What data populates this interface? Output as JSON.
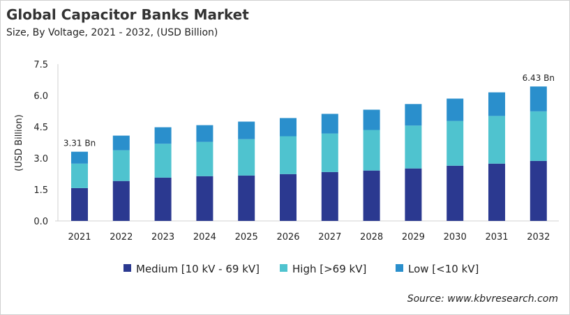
{
  "chart_data": {
    "type": "bar",
    "stacked": true,
    "title": "Global Capacitor Banks Market",
    "subtitle": "Size, By Voltage, 2021 - 2032, (USD Billion)",
    "xlabel": "",
    "ylabel": "(USD Billion)",
    "ylim": [
      0,
      7.5
    ],
    "yticks": [
      "0.0",
      "1.5",
      "3.0",
      "4.5",
      "6.0",
      "7.5"
    ],
    "grid": false,
    "legend_position": "bottom",
    "categories": [
      "2021",
      "2022",
      "2023",
      "2024",
      "2025",
      "2026",
      "2027",
      "2028",
      "2029",
      "2030",
      "2031",
      "2032"
    ],
    "series": [
      {
        "name": "Medium [10 kV - 69 kV]",
        "color": "#2B3990",
        "values": [
          1.57,
          1.91,
          2.07,
          2.14,
          2.17,
          2.24,
          2.34,
          2.41,
          2.51,
          2.64,
          2.74,
          2.87
        ]
      },
      {
        "name": "High [>69 kV]",
        "color": "#4FC3CF",
        "values": [
          1.17,
          1.47,
          1.62,
          1.64,
          1.74,
          1.81,
          1.84,
          1.94,
          2.05,
          2.14,
          2.28,
          2.37
        ]
      },
      {
        "name": "Low [<10 kV]",
        "color": "#2A8FCC",
        "values": [
          0.57,
          0.7,
          0.79,
          0.8,
          0.84,
          0.87,
          0.94,
          0.97,
          1.03,
          1.07,
          1.13,
          1.19
        ]
      }
    ],
    "annotations": [
      {
        "category": "2021",
        "text": "3.31 Bn"
      },
      {
        "category": "2032",
        "text": "6.43 Bn"
      }
    ]
  },
  "source": "Source: www.kbvresearch.com"
}
